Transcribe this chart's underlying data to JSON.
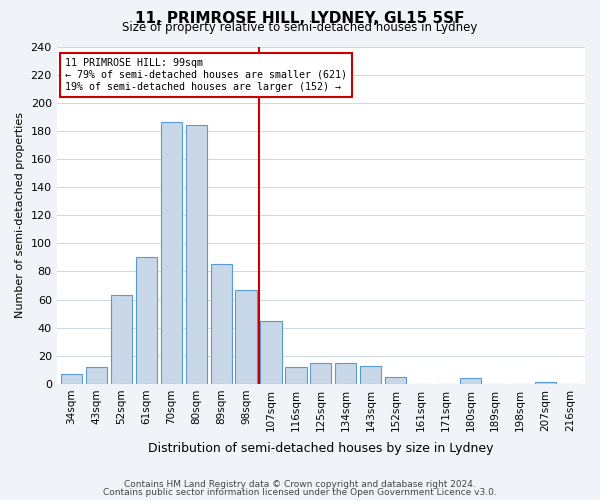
{
  "title": "11, PRIMROSE HILL, LYDNEY, GL15 5SF",
  "subtitle": "Size of property relative to semi-detached houses in Lydney",
  "xlabel": "Distribution of semi-detached houses by size in Lydney",
  "ylabel": "Number of semi-detached properties",
  "categories": [
    "34sqm",
    "43sqm",
    "52sqm",
    "61sqm",
    "70sqm",
    "80sqm",
    "89sqm",
    "98sqm",
    "107sqm",
    "116sqm",
    "125sqm",
    "134sqm",
    "143sqm",
    "152sqm",
    "161sqm",
    "171sqm",
    "180sqm",
    "189sqm",
    "198sqm",
    "207sqm",
    "216sqm"
  ],
  "values": [
    7,
    12,
    63,
    90,
    186,
    184,
    85,
    67,
    45,
    12,
    15,
    15,
    13,
    5,
    0,
    0,
    4,
    0,
    0,
    1,
    0
  ],
  "bar_color": "#c8d8e8",
  "bar_edge_color": "#5b9bd5",
  "vline_x": 7.5,
  "vline_color": "#cc0000",
  "annotation_title": "11 PRIMROSE HILL: 99sqm",
  "annotation_line1": "← 79% of semi-detached houses are smaller (621)",
  "annotation_line2": "19% of semi-detached houses are larger (152) →",
  "annotation_box_color": "#cc0000",
  "ylim": [
    0,
    240
  ],
  "yticks": [
    0,
    20,
    40,
    60,
    80,
    100,
    120,
    140,
    160,
    180,
    200,
    220,
    240
  ],
  "footer1": "Contains HM Land Registry data © Crown copyright and database right 2024.",
  "footer2": "Contains public sector information licensed under the Open Government Licence v3.0.",
  "bg_color": "#f0f4f8",
  "plot_bg_color": "#ffffff",
  "grid_color": "#d0d8e0"
}
